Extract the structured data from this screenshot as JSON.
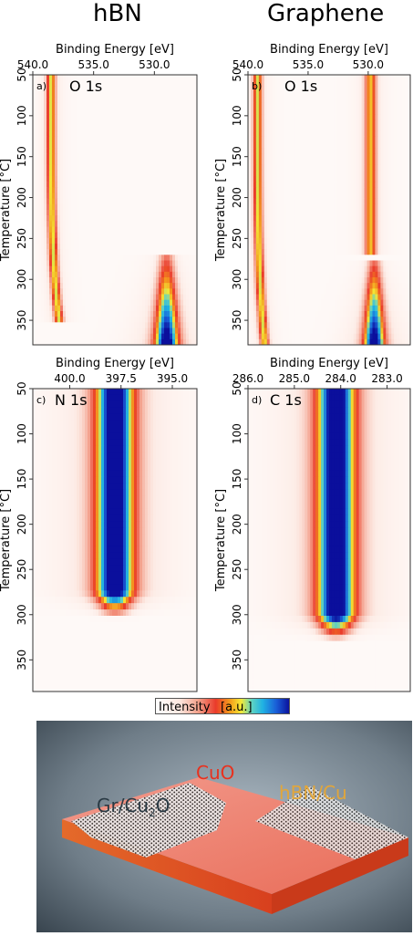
{
  "columns": {
    "left": "hBN",
    "right": "Graphene"
  },
  "colorbar": {
    "label": "Intensity",
    "unit": "[a.u.]"
  },
  "render": {
    "labels": {
      "cuo": "CuO",
      "gr_prefix": "Gr/Cu",
      "gr_sub": "2",
      "gr_suffix": "O",
      "hbn": "hBN/Cu"
    }
  },
  "chart_data": [
    {
      "id": "a",
      "type": "heatmap",
      "panel_label": "a)",
      "core_level": "O 1s",
      "xlabel": "Binding Energy [eV]",
      "ylabel": "Temperature [°C]",
      "xlim": [
        540.0,
        526.5
      ],
      "ylim": [
        50,
        380
      ],
      "xticks": [
        "540.0",
        "535.0",
        "530.0"
      ],
      "xtick_values": [
        540.0,
        535.0,
        530.0
      ],
      "yticks": [
        50,
        100,
        150,
        200,
        250,
        300,
        350
      ],
      "features": [
        {
          "kind": "line",
          "center_ev": 538.5,
          "width_ev": 0.35,
          "t_start": 50,
          "t_end": 355,
          "intensity": 0.55,
          "shift_ev": -0.7
        },
        {
          "kind": "peak",
          "center_ev": 529.0,
          "width_ev": 0.8,
          "t_start": 270,
          "t_end": 380,
          "intensity": 1.0
        }
      ]
    },
    {
      "id": "b",
      "type": "heatmap",
      "panel_label": "b)",
      "core_level": "O 1s",
      "xlabel": "Binding Energy [eV]",
      "ylabel": "Temperature [°C]",
      "xlim": [
        540.0,
        526.5
      ],
      "ylim": [
        50,
        380
      ],
      "xticks": [
        "540.0",
        "535.0",
        "530.0"
      ],
      "xtick_values": [
        540.0,
        535.0,
        530.0
      ],
      "yticks": [
        50,
        100,
        150,
        200,
        250,
        300,
        350
      ],
      "features": [
        {
          "kind": "line",
          "center_ev": 539.2,
          "width_ev": 0.35,
          "t_start": 50,
          "t_end": 380,
          "intensity": 0.55,
          "shift_ev": -0.6
        },
        {
          "kind": "line",
          "center_ev": 529.8,
          "width_ev": 0.45,
          "t_start": 50,
          "t_end": 270,
          "intensity": 0.5
        },
        {
          "kind": "peak",
          "center_ev": 529.5,
          "width_ev": 0.7,
          "t_start": 275,
          "t_end": 380,
          "intensity": 1.0
        }
      ]
    },
    {
      "id": "c",
      "type": "heatmap",
      "panel_label": "c)",
      "core_level": "N 1s",
      "xlabel": "Binding Energy [eV]",
      "ylabel": "Temperature [°C]",
      "xlim": [
        401.8,
        393.8
      ],
      "ylim": [
        50,
        385
      ],
      "xticks": [
        "400.0",
        "397.5",
        "395.0"
      ],
      "xtick_values": [
        400.0,
        397.5,
        395.0
      ],
      "yticks": [
        50,
        100,
        150,
        200,
        250,
        300,
        350
      ],
      "features": [
        {
          "kind": "band",
          "center_ev": 397.8,
          "width_ev": 0.9,
          "t_start": 50,
          "t_end": 305,
          "intensity": 1.0
        }
      ]
    },
    {
      "id": "d",
      "type": "heatmap",
      "panel_label": "d)",
      "core_level": "C 1s",
      "xlabel": "Binding Energy [eV]",
      "ylabel": "Temperature [°C]",
      "xlim": [
        286.0,
        282.5
      ],
      "ylim": [
        50,
        385
      ],
      "xticks": [
        "286.0",
        "285.0",
        "284.0",
        "283.0"
      ],
      "xtick_values": [
        286.0,
        285.0,
        284.0,
        283.0
      ],
      "yticks": [
        50,
        100,
        150,
        200,
        250,
        300,
        350
      ],
      "features": [
        {
          "kind": "band",
          "center_ev": 284.1,
          "width_ev": 0.4,
          "t_start": 50,
          "t_end": 330,
          "intensity": 1.0
        }
      ]
    }
  ]
}
